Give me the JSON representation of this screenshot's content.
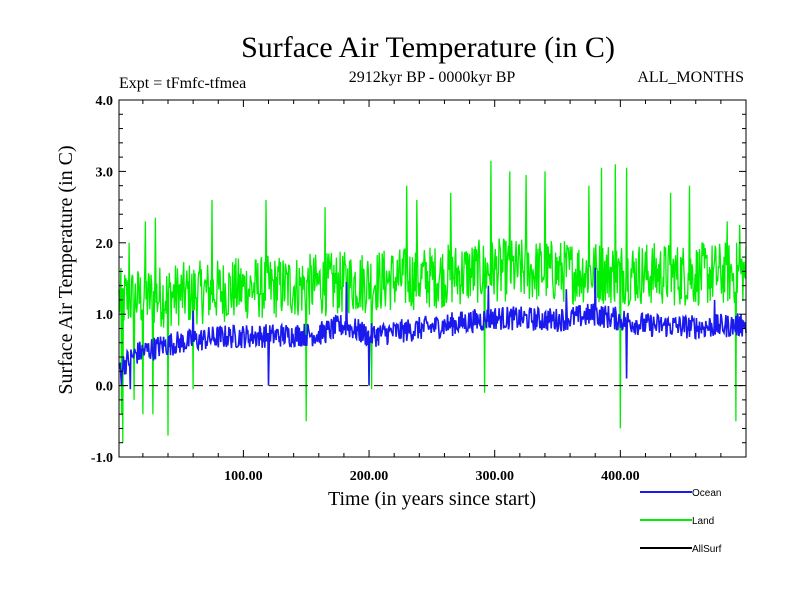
{
  "chart_data": {
    "type": "line",
    "title": "Surface Air Temperature (in C)",
    "experiment": "Expt = tFmfc-tfmea",
    "period": "2912kyr BP - 0000kyr BP",
    "season": "ALL_MONTHS",
    "xlabel": "Time (in years since start)",
    "ylabel": "Surface Air Temperature (in C)",
    "xlim": [
      1,
      500
    ],
    "ylim": [
      -1.0,
      4.0
    ],
    "xticks": [
      100,
      200,
      300,
      400
    ],
    "xtick_labels": [
      "100.00",
      "200.00",
      "300.00",
      "400.00"
    ],
    "yticks": [
      -1.0,
      0.0,
      1.0,
      2.0,
      3.0,
      4.0
    ],
    "ytick_labels": [
      "-1.0",
      "0.0",
      "1.0",
      "2.0",
      "3.0",
      "4.0"
    ],
    "reference_line": {
      "y": 0.0,
      "style": "dashed"
    },
    "series": [
      {
        "name": "Land",
        "color": "#00ee00",
        "trend": [
          [
            1,
            1.2
          ],
          [
            50,
            1.28
          ],
          [
            100,
            1.36
          ],
          [
            150,
            1.4
          ],
          [
            200,
            1.46
          ],
          [
            250,
            1.52
          ],
          [
            300,
            1.62
          ],
          [
            350,
            1.6
          ],
          [
            400,
            1.58
          ],
          [
            450,
            1.55
          ],
          [
            500,
            1.58
          ]
        ],
        "noise_amplitude": 0.45,
        "peaks": [
          [
            9,
            2.0
          ],
          [
            22,
            2.3
          ],
          [
            30,
            2.35
          ],
          [
            75,
            2.6
          ],
          [
            118,
            2.6
          ],
          [
            165,
            2.5
          ],
          [
            230,
            2.8
          ],
          [
            238,
            2.6
          ],
          [
            265,
            2.7
          ],
          [
            297,
            3.15
          ],
          [
            312,
            3.0
          ],
          [
            325,
            2.95
          ],
          [
            340,
            3.0
          ],
          [
            375,
            2.8
          ],
          [
            385,
            3.05
          ],
          [
            396,
            3.1
          ],
          [
            405,
            3.05
          ],
          [
            440,
            2.7
          ],
          [
            455,
            2.8
          ],
          [
            485,
            2.3
          ],
          [
            495,
            2.25
          ]
        ],
        "troughs": [
          [
            3,
            -0.4
          ],
          [
            4,
            -0.8
          ],
          [
            13,
            -0.2
          ],
          [
            20,
            -0.4
          ],
          [
            28,
            -0.4
          ],
          [
            40,
            -0.7
          ],
          [
            60,
            -0.05
          ],
          [
            150,
            -0.5
          ],
          [
            202,
            -0.05
          ],
          [
            292,
            -0.1
          ],
          [
            400,
            -0.6
          ],
          [
            492,
            -0.5
          ]
        ]
      },
      {
        "name": "Ocean",
        "color": "#1a1aee",
        "trend": [
          [
            1,
            0.25
          ],
          [
            15,
            0.45
          ],
          [
            40,
            0.58
          ],
          [
            80,
            0.68
          ],
          [
            120,
            0.7
          ],
          [
            160,
            0.72
          ],
          [
            180,
            0.85
          ],
          [
            200,
            0.7
          ],
          [
            250,
            0.82
          ],
          [
            300,
            0.95
          ],
          [
            350,
            0.92
          ],
          [
            380,
            1.0
          ],
          [
            420,
            0.85
          ],
          [
            460,
            0.82
          ],
          [
            500,
            0.85
          ]
        ],
        "noise_amplitude": 0.17,
        "peaks": [
          [
            60,
            1.05
          ],
          [
            182,
            1.45
          ],
          [
            295,
            1.4
          ],
          [
            357,
            1.35
          ],
          [
            380,
            1.65
          ],
          [
            475,
            1.2
          ],
          [
            496,
            1.0
          ]
        ],
        "troughs": [
          [
            3,
            0.0
          ],
          [
            10,
            -0.05
          ],
          [
            120,
            0.0
          ],
          [
            200,
            0.0
          ],
          [
            405,
            0.1
          ]
        ]
      },
      {
        "name": "AllSurf",
        "color": "#000000",
        "trend": [],
        "noise_amplitude": 0
      }
    ]
  }
}
